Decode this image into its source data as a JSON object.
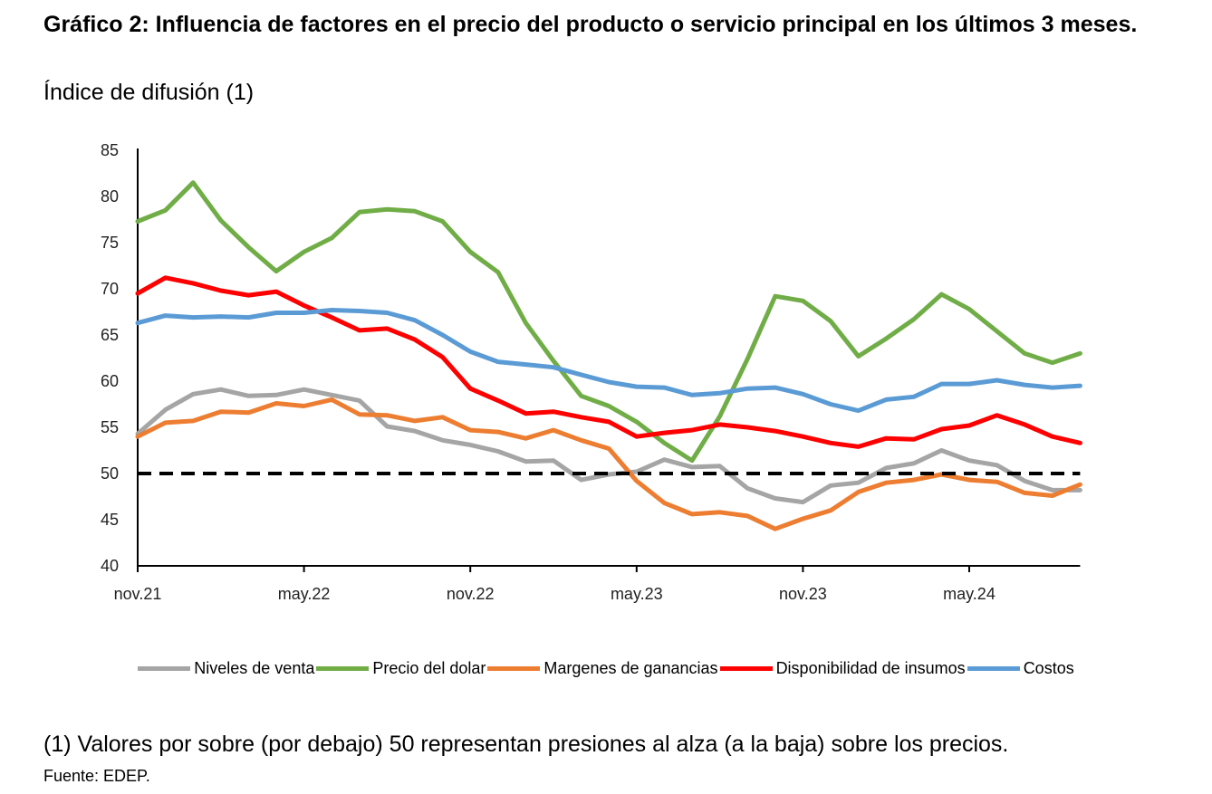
{
  "header": {
    "title": "Gráfico 2: Influencia de factores en el precio del producto o servicio principal en los últimos 3 meses.",
    "subtitle": "Índice de difusión (1)"
  },
  "footer": {
    "note": "(1) Valores por sobre (por debajo) 50 representan presiones al alza (a la baja) sobre los precios.",
    "source": "Fuente: EDEP."
  },
  "chart_data": {
    "type": "line",
    "title": "Gráfico 2: Influencia de factores en el precio del producto o servicio principal en los últimos 3 meses.",
    "ylabel": "Índice de difusión (1)",
    "xlabel": "",
    "x_tick_labels": [
      "nov.21",
      "may.22",
      "nov.22",
      "may.23",
      "nov.23",
      "may.24"
    ],
    "x_tick_indices": [
      0,
      6,
      12,
      18,
      24,
      30
    ],
    "y_ticks": [
      40,
      45,
      50,
      55,
      60,
      65,
      70,
      75,
      80,
      85
    ],
    "ylim": [
      40,
      85
    ],
    "grid": false,
    "legend_position": "bottom",
    "reference_line": {
      "y": 50,
      "style": "dashed",
      "color": "#000000"
    },
    "series": [
      {
        "name": "Niveles de venta",
        "color": "#A5A5A5",
        "values": [
          54.3,
          56.9,
          58.6,
          59.1,
          58.4,
          58.5,
          59.1,
          58.5,
          57.9,
          55.1,
          54.6,
          53.6,
          53.1,
          52.4,
          51.3,
          51.4,
          49.3,
          49.9,
          50.2,
          51.5,
          50.7,
          50.8,
          48.4,
          47.3,
          46.9,
          48.7,
          49.0,
          50.6,
          51.1,
          52.5,
          51.4,
          50.9,
          49.2,
          48.2,
          48.2
        ]
      },
      {
        "name": "Precio del dolar",
        "color": "#70AD47",
        "values": [
          77.3,
          78.5,
          81.5,
          77.4,
          74.5,
          71.9,
          74.0,
          75.5,
          78.3,
          78.6,
          78.4,
          77.3,
          74.0,
          71.8,
          66.3,
          62.2,
          58.4,
          57.3,
          55.6,
          53.3,
          51.4,
          56.2,
          62.4,
          69.2,
          68.7,
          66.5,
          62.7,
          64.6,
          66.7,
          69.4,
          67.8,
          65.4,
          63.0,
          62.0,
          63.0
        ]
      },
      {
        "name": "Margenes de ganancias",
        "color": "#ED7D31",
        "values": [
          54.0,
          55.5,
          55.7,
          56.7,
          56.6,
          57.6,
          57.3,
          58.0,
          56.4,
          56.3,
          55.7,
          56.1,
          54.7,
          54.5,
          53.8,
          54.7,
          53.6,
          52.7,
          49.2,
          46.8,
          45.6,
          45.8,
          45.4,
          44.0,
          45.1,
          46.0,
          48.0,
          49.0,
          49.3,
          49.9,
          49.3,
          49.1,
          47.9,
          47.6,
          48.8
        ]
      },
      {
        "name": "Disponibilidad de insumos",
        "color": "#FF0000",
        "values": [
          69.5,
          71.2,
          70.6,
          69.8,
          69.3,
          69.7,
          68.2,
          66.9,
          65.5,
          65.7,
          64.5,
          62.6,
          59.2,
          57.9,
          56.5,
          56.7,
          56.1,
          55.6,
          54.0,
          54.4,
          54.7,
          55.3,
          55.0,
          54.6,
          54.0,
          53.3,
          52.9,
          53.8,
          53.7,
          54.8,
          55.2,
          56.3,
          55.3,
          54.0,
          53.3
        ]
      },
      {
        "name": "Costos",
        "color": "#5B9BD5",
        "values": [
          66.3,
          67.1,
          66.9,
          67.0,
          66.9,
          67.4,
          67.4,
          67.7,
          67.6,
          67.4,
          66.6,
          65.0,
          63.2,
          62.1,
          61.8,
          61.5,
          60.7,
          59.9,
          59.4,
          59.3,
          58.5,
          58.7,
          59.2,
          59.3,
          58.6,
          57.5,
          56.8,
          58.0,
          58.3,
          59.7,
          59.7,
          60.1,
          59.6,
          59.3,
          59.5
        ]
      }
    ]
  }
}
